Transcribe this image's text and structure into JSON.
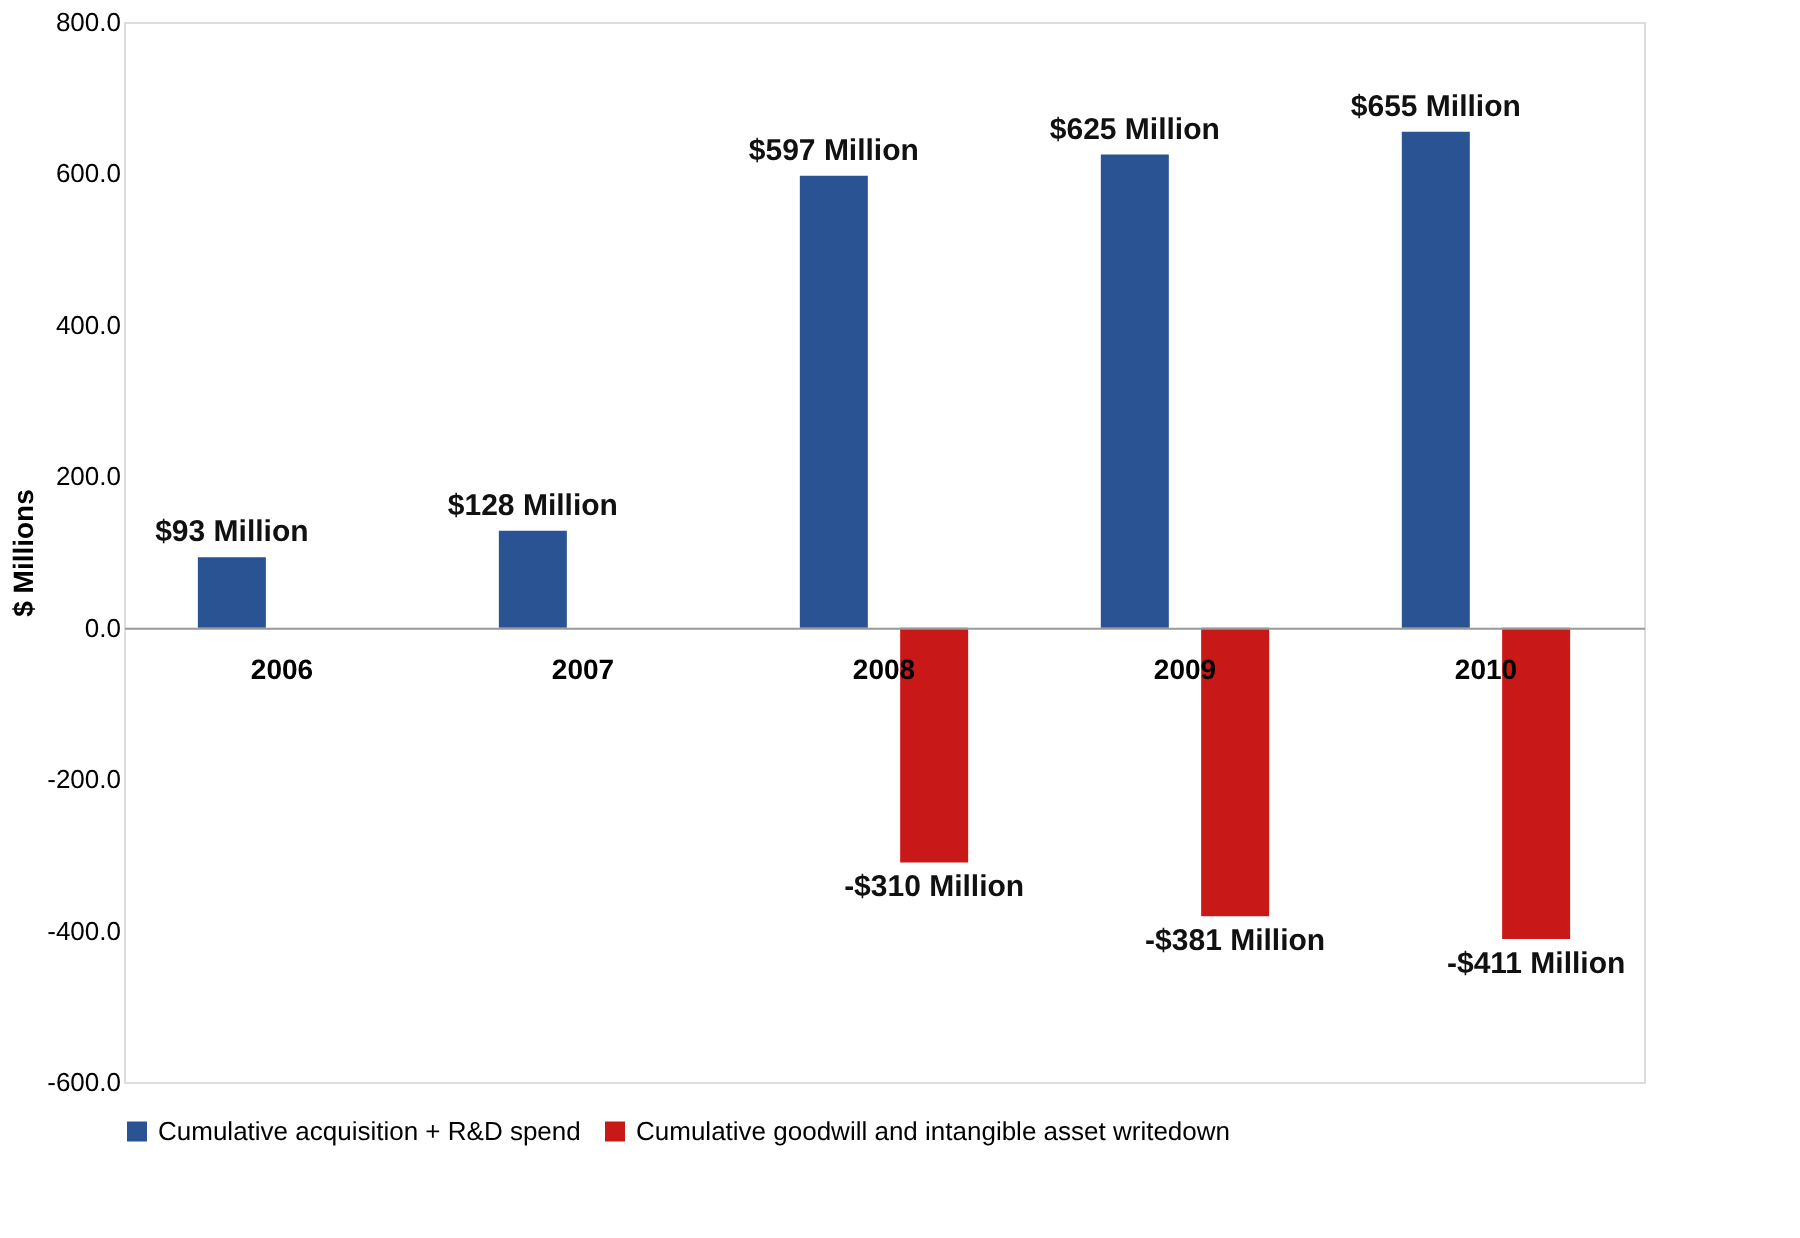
{
  "chart_data": {
    "type": "bar",
    "ylabel": "$ Millions",
    "categories": [
      "2006",
      "2007",
      "2008",
      "2009",
      "2010"
    ],
    "series": [
      {
        "name": "Cumulative acquisition + R&D spend",
        "color": "#2a5393",
        "values": [
          93,
          128,
          597,
          625,
          655
        ],
        "value_labels": [
          "$93 Million",
          "$128 Million",
          "$597 Million",
          "$625 Million",
          "$655 Million"
        ]
      },
      {
        "name": "Cumulative goodwill and intangible asset writedown",
        "color": "#c81818",
        "values": [
          null,
          null,
          -310,
          -381,
          -411
        ],
        "value_labels": [
          null,
          null,
          "-$310 Million",
          "-$381 Million",
          "-$411 Million"
        ]
      }
    ],
    "ylim": [
      -600,
      800
    ],
    "yticks": [
      {
        "value": -600,
        "label": "-600.0"
      },
      {
        "value": -400,
        "label": "-400.0"
      },
      {
        "value": -200,
        "label": "-200.0"
      },
      {
        "value": 0,
        "label": "0.0"
      },
      {
        "value": 200,
        "label": "200.0"
      },
      {
        "value": 400,
        "label": "400.0"
      },
      {
        "value": 600,
        "label": "600.0"
      },
      {
        "value": 800,
        "label": "800.0"
      }
    ],
    "grid": false,
    "legend": "bottom"
  }
}
